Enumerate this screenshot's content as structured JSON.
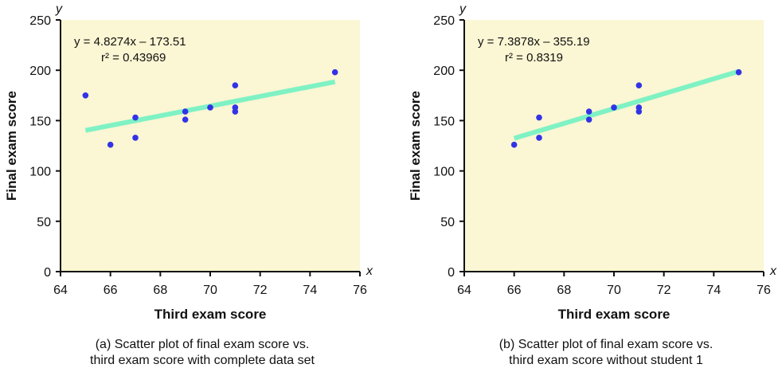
{
  "colors": {
    "plot_background": "#fbf6d3",
    "points": "#3333e6",
    "trend_line": "#7ff2c4",
    "axis": "#111111"
  },
  "chart_data": [
    {
      "type": "scatter",
      "xlabel": "Third exam score",
      "ylabel": "Final exam score",
      "x_axis_symbol": "x",
      "y_axis_symbol": "y",
      "xlim": [
        64,
        76
      ],
      "ylim": [
        0,
        250
      ],
      "xticks": [
        64,
        66,
        68,
        70,
        72,
        74,
        76
      ],
      "yticks": [
        0,
        50,
        100,
        150,
        200,
        250
      ],
      "grid": false,
      "equation": "y = 4.8274x – 173.51",
      "r_squared": "r² = 0.43969",
      "trend": {
        "slope": 4.8274,
        "intercept": -173.51,
        "x_range": [
          65,
          75
        ]
      },
      "points": [
        {
          "x": 65,
          "y": 175
        },
        {
          "x": 66,
          "y": 126
        },
        {
          "x": 67,
          "y": 133
        },
        {
          "x": 67,
          "y": 153
        },
        {
          "x": 69,
          "y": 151
        },
        {
          "x": 69,
          "y": 159
        },
        {
          "x": 70,
          "y": 163
        },
        {
          "x": 71,
          "y": 159
        },
        {
          "x": 71,
          "y": 163
        },
        {
          "x": 71,
          "y": 185
        },
        {
          "x": 75,
          "y": 198
        }
      ],
      "caption_line1": "(a) Scatter plot of final exam score vs.",
      "caption_line2": "third exam score with complete data set"
    },
    {
      "type": "scatter",
      "xlabel": "Third exam score",
      "ylabel": "Final exam score",
      "x_axis_symbol": "x",
      "y_axis_symbol": "y",
      "xlim": [
        64,
        76
      ],
      "ylim": [
        0,
        250
      ],
      "xticks": [
        64,
        66,
        68,
        70,
        72,
        74,
        76
      ],
      "yticks": [
        0,
        50,
        100,
        150,
        200,
        250
      ],
      "grid": false,
      "equation": "y = 7.3878x – 355.19",
      "r_squared": "r² = 0.8319",
      "trend": {
        "slope": 7.3878,
        "intercept": -355.19,
        "x_range": [
          66,
          75
        ]
      },
      "points": [
        {
          "x": 66,
          "y": 126
        },
        {
          "x": 67,
          "y": 133
        },
        {
          "x": 67,
          "y": 153
        },
        {
          "x": 69,
          "y": 151
        },
        {
          "x": 69,
          "y": 159
        },
        {
          "x": 70,
          "y": 163
        },
        {
          "x": 71,
          "y": 159
        },
        {
          "x": 71,
          "y": 163
        },
        {
          "x": 71,
          "y": 185
        },
        {
          "x": 75,
          "y": 198
        }
      ],
      "caption_line1": "(b) Scatter plot of final exam score vs.",
      "caption_line2": "third exam score without student 1"
    }
  ]
}
